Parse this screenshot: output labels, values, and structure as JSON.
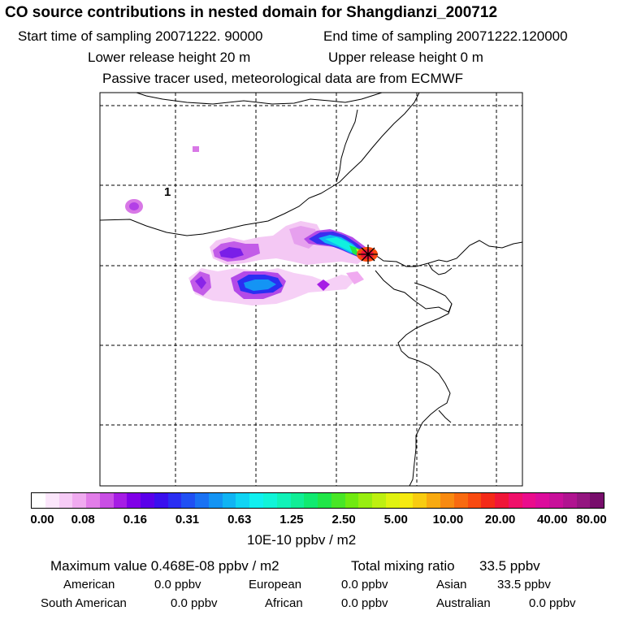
{
  "header": {
    "title": "CO  source contributions in nested domain for Shangdianzi_200712",
    "start_time": "Start time of sampling 20071222. 90000",
    "end_time": "End time of sampling 20071222.120000",
    "lower_height": "Lower release height   20 m",
    "upper_height": "Upper release height    0 m",
    "tracer_note": "Passive tracer used, meteorological data are from ECMWF"
  },
  "map": {
    "grid_label": "1",
    "receptor": "Shangdianzi",
    "receptor_marker": "star-marker"
  },
  "colorbar": {
    "ticks": [
      "0.00",
      "0.08",
      "0.16",
      "0.31",
      "0.63",
      "1.25",
      "2.50",
      "5.00",
      "10.00",
      "20.00",
      "40.00",
      "80.00"
    ],
    "units": "10E-10 ppbv / m2",
    "colors": [
      "#ffffff",
      "#fbe6fb",
      "#f6cbf6",
      "#f0aaf0",
      "#e27de9",
      "#c94fe5",
      "#a61de5",
      "#8000e8",
      "#5a00ea",
      "#3a10ee",
      "#2a2ef2",
      "#2050f4",
      "#1a72f4",
      "#1494f4",
      "#10b4f4",
      "#10d4f4",
      "#10f0f0",
      "#10f4d8",
      "#10f2b8",
      "#10ee96",
      "#10ea70",
      "#20e648",
      "#48e626",
      "#70ea10",
      "#98ee10",
      "#bef010",
      "#e0f210",
      "#f6ea10",
      "#f8cc10",
      "#f8aa10",
      "#f88a10",
      "#f86a10",
      "#f84a10",
      "#f42a18",
      "#f01638",
      "#f0106a",
      "#ea0c8c",
      "#dc0c9c",
      "#c8109a",
      "#b01490",
      "#941680",
      "#780e6c"
    ]
  },
  "summary": {
    "max_label": "Maximum value  0.468E-08 ppbv / m2",
    "total_label": "Total mixing ratio",
    "total_value": "33.5 ppbv",
    "regions": [
      {
        "name": "American",
        "value": "0.0 ppbv"
      },
      {
        "name": "European",
        "value": "0.0 ppbv"
      },
      {
        "name": "Asian",
        "value": "33.5 ppbv"
      },
      {
        "name": "South American",
        "value": "0.0 ppbv"
      },
      {
        "name": "African",
        "value": "0.0 ppbv"
      },
      {
        "name": "Australian",
        "value": "0.0 ppbv"
      }
    ]
  }
}
